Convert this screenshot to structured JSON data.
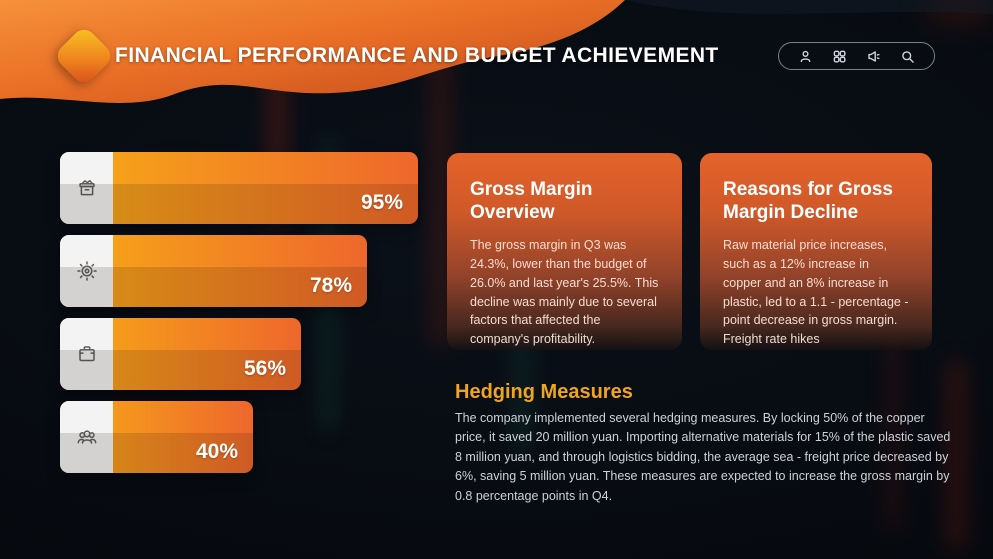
{
  "header": {
    "title": "FINANCIAL PERFORMANCE AND BUDGET ACHIEVEMENT",
    "toolbar_icons": [
      "user-icon",
      "grid-icon",
      "announcement-icon",
      "search-icon"
    ]
  },
  "chart_data": {
    "type": "bar",
    "orientation": "horizontal",
    "categories": [
      "storage-box",
      "gear",
      "briefcase",
      "team"
    ],
    "values": [
      95,
      78,
      56,
      40
    ],
    "labels": [
      "95%",
      "78%",
      "56%",
      "40%"
    ],
    "title": "",
    "xlabel": "",
    "ylabel": "",
    "xlim": [
      0,
      100
    ],
    "grid": false,
    "bar_gradient": [
      "#F7AB17",
      "#EE672C"
    ]
  },
  "cards": [
    {
      "title": "Gross Margin Overview",
      "body": "The gross margin in Q3 was 24.3%, lower than the budget of 26.0% and last year's 25.5%. This decline was mainly due to several factors that affected the company's profitability."
    },
    {
      "title": "Reasons for Gross Margin Decline",
      "body": "Raw material price increases, such as a 12% increase in copper and an 8% increase in plastic, led to a 1.1 - percentage - point decrease in gross margin. Freight rate hikes"
    }
  ],
  "hedging": {
    "title": "Hedging Measures",
    "body": "The company implemented several hedging measures. By locking 50% of the copper price, it saved 20 million yuan. Importing alternative materials for 15% of the plastic saved 8 million yuan, and through logistics bidding, the average sea - freight price decreased by 6%, saving 5 million yuan. These measures are expected to increase the gross margin by 0.8 percentage points in Q4."
  },
  "colors": {
    "accent_orange": "#EE672C",
    "accent_amber": "#F7AB17",
    "hedging_accent": "#F1A41D",
    "background": "#070B11",
    "card_top": "#E5632A"
  }
}
